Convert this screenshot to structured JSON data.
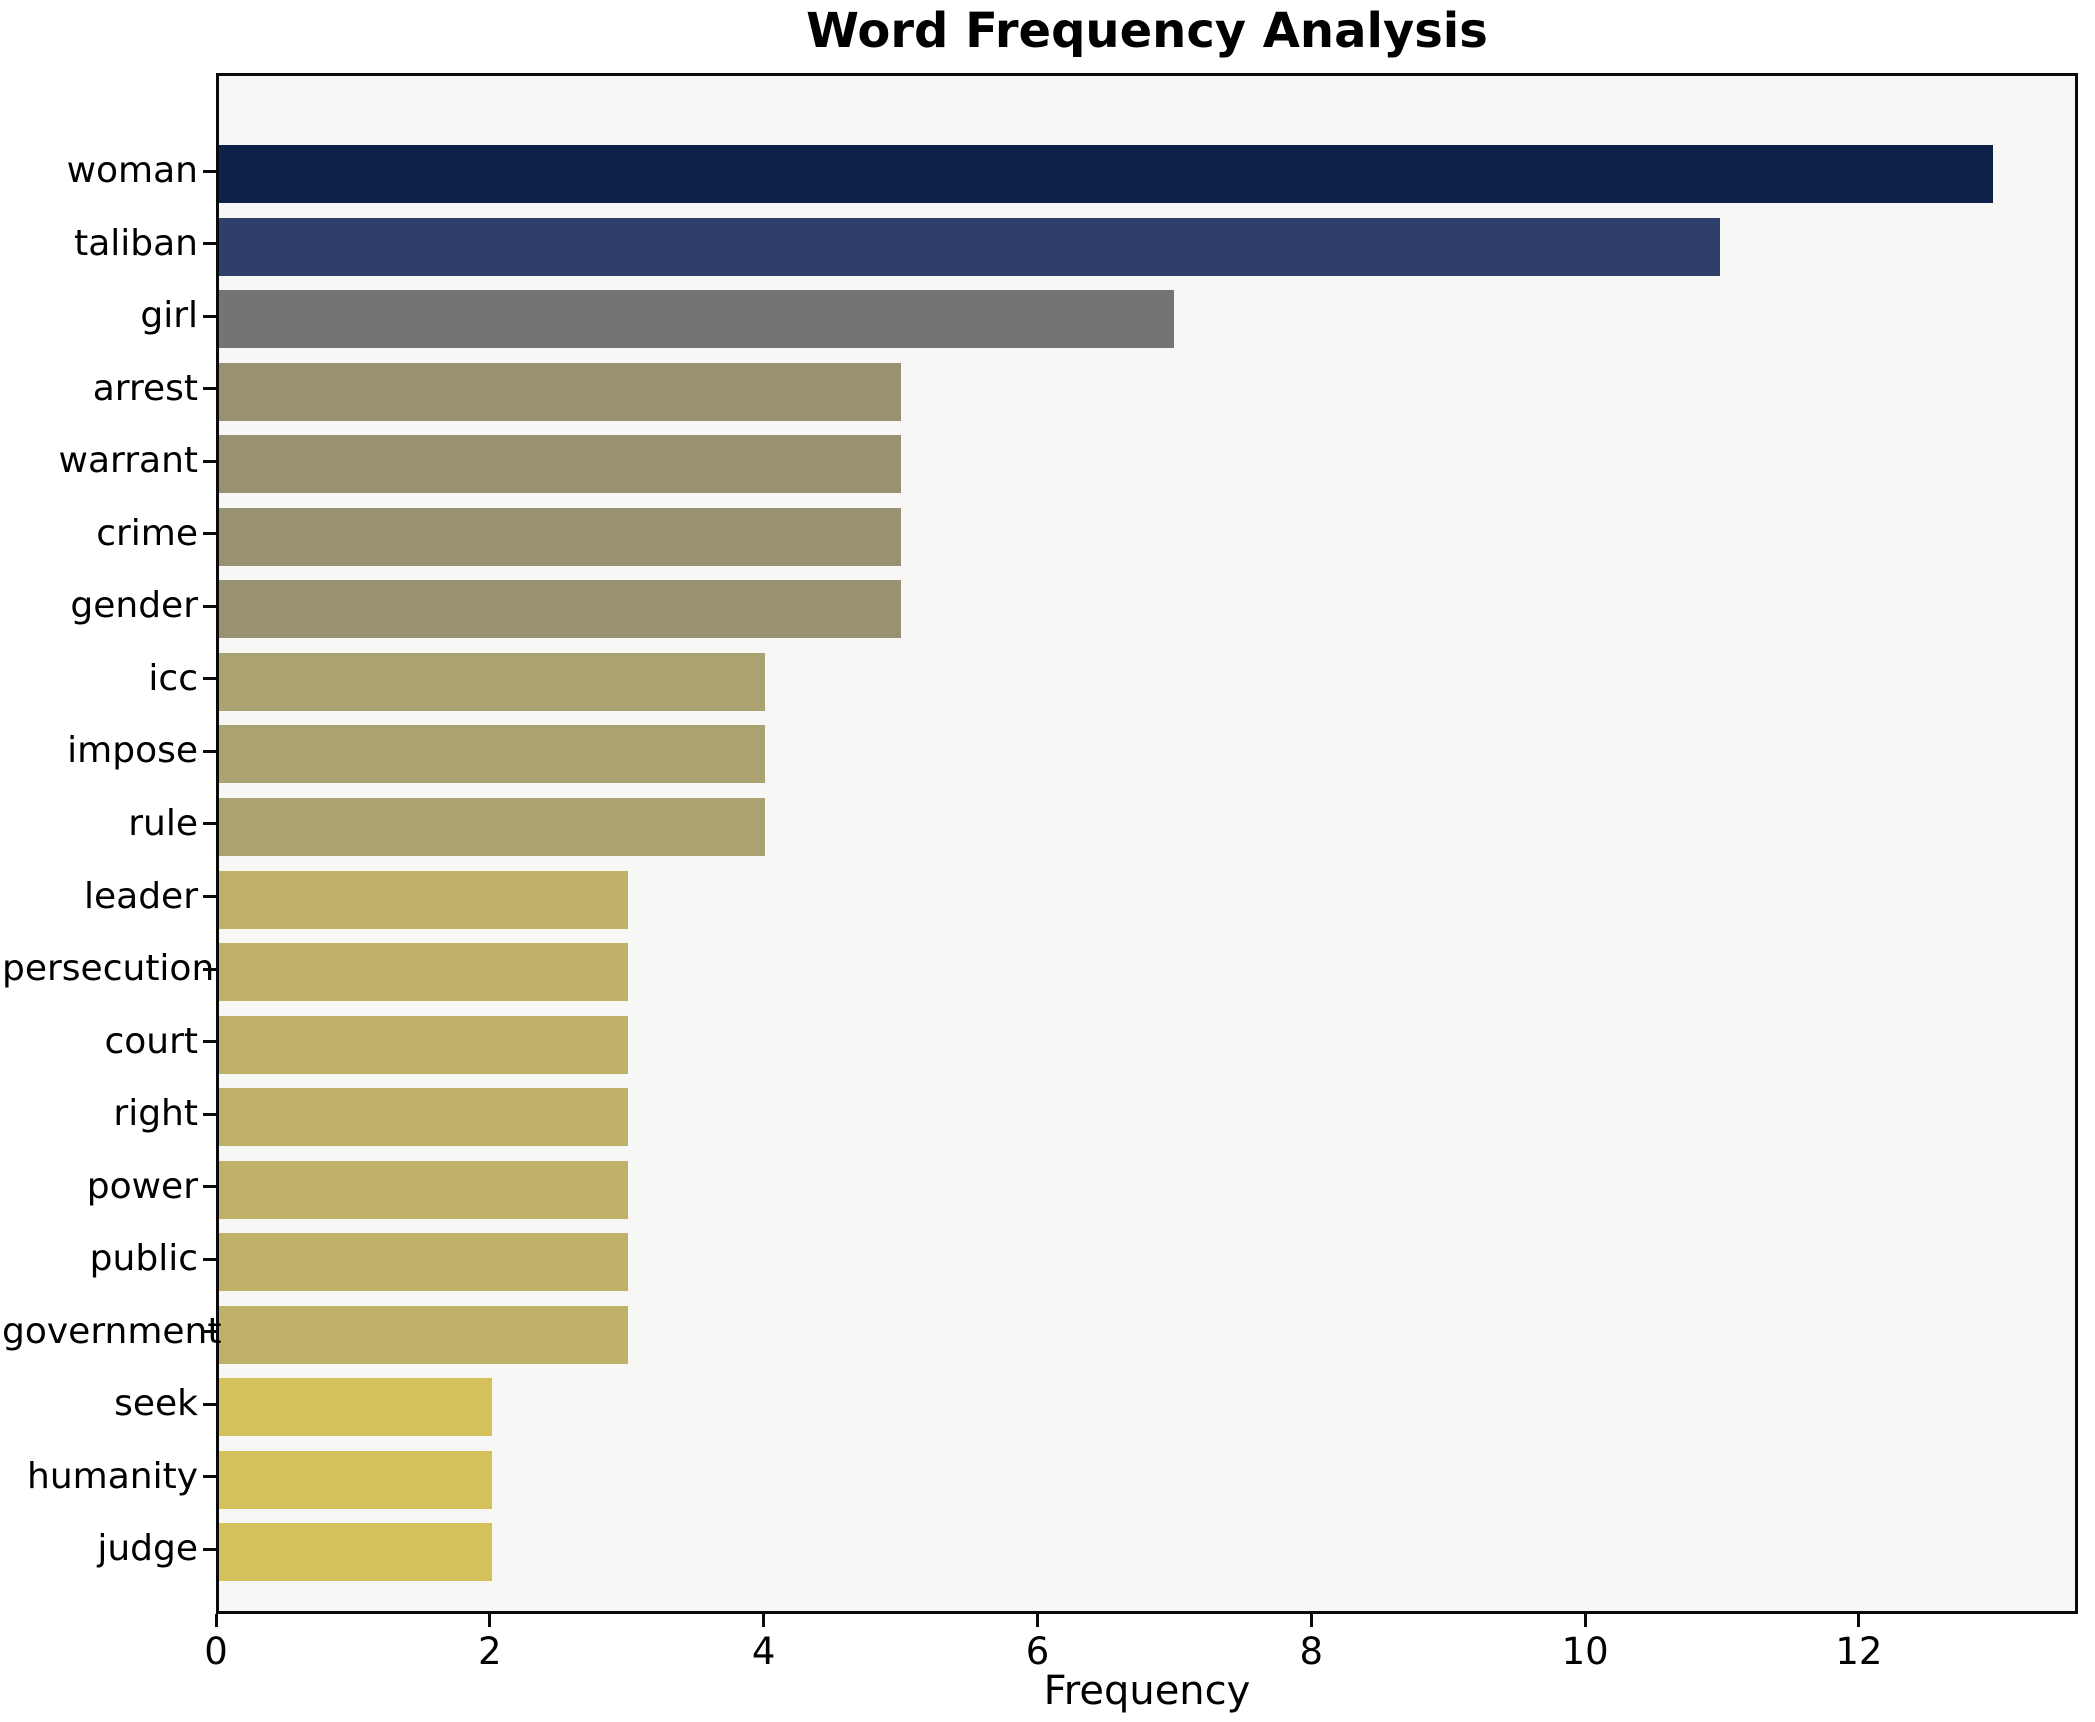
{
  "chart_data": {
    "type": "bar",
    "orientation": "horizontal",
    "title": "Word Frequency Analysis",
    "xlabel": "Frequency",
    "ylabel": "",
    "categories": [
      "woman",
      "taliban",
      "girl",
      "arrest",
      "warrant",
      "crime",
      "gender",
      "icc",
      "impose",
      "rule",
      "leader",
      "persecution",
      "court",
      "right",
      "power",
      "public",
      "government",
      "seek",
      "humanity",
      "judge"
    ],
    "values": [
      13,
      11,
      7,
      5,
      5,
      5,
      5,
      4,
      4,
      4,
      3,
      3,
      3,
      3,
      3,
      3,
      3,
      2,
      2,
      2
    ],
    "bar_colors": [
      "#0d2149",
      "#2e3f6b",
      "#747473",
      "#999272",
      "#999272",
      "#999272",
      "#999272",
      "#aba272",
      "#aba272",
      "#aba272",
      "#bfb169",
      "#bfb169",
      "#bfb169",
      "#bfb169",
      "#bfb169",
      "#bfb169",
      "#bfb169",
      "#d5c15c",
      "#d5c15c",
      "#d5c15c"
    ],
    "x_ticks": [
      0,
      2,
      4,
      6,
      8,
      10,
      12
    ],
    "xlim": [
      0,
      13.6
    ],
    "grid": false,
    "legend": false,
    "colors": {
      "plot_bg": "#f7f7f6",
      "fig_bg": "#ffffff",
      "frame": "#0a0a0a",
      "text": "#000000"
    }
  }
}
